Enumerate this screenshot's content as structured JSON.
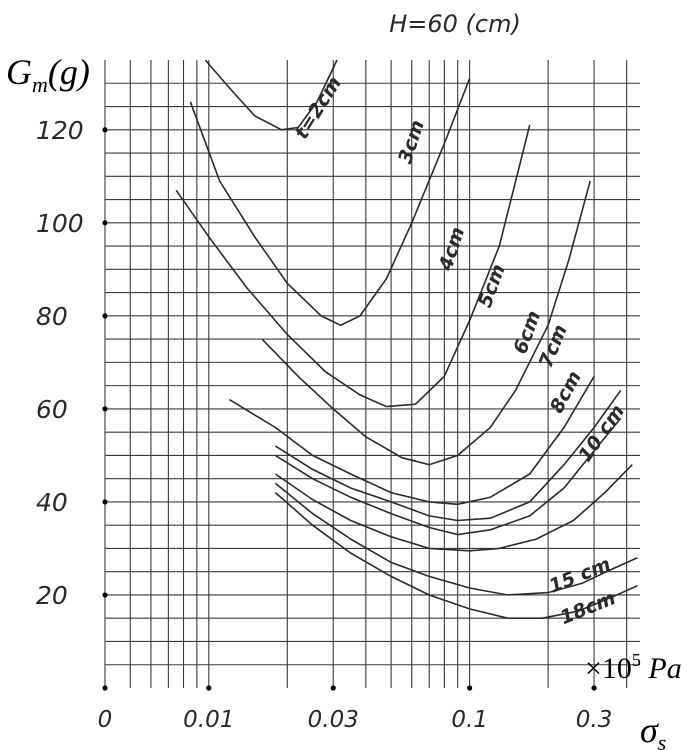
{
  "chart_data": {
    "type": "line",
    "title": "H=60 (cm)",
    "ylabel": "G_m(g)",
    "y_axis_label": {
      "main": "G",
      "sub": "m",
      "rest": "(g)"
    },
    "xlabel_symbol": {
      "main": "σ",
      "sub": "s"
    },
    "x_unit": {
      "prefix": "×10",
      "exp": "5",
      "unit": " Pa"
    },
    "x_scale": "log",
    "xlim": [
      0.004,
      0.45
    ],
    "ylim": [
      0,
      135
    ],
    "grid": true,
    "x_ticks": [
      {
        "label": "0",
        "value": 0.004
      },
      {
        "label": "0.01",
        "value": 0.01
      },
      {
        "label": "0.03",
        "value": 0.03
      },
      {
        "label": "0.1",
        "value": 0.1
      },
      {
        "label": "0.3",
        "value": 0.3
      }
    ],
    "y_ticks": [
      {
        "label": "20",
        "value": 20
      },
      {
        "label": "40",
        "value": 40
      },
      {
        "label": "60",
        "value": 60
      },
      {
        "label": "80",
        "value": 80
      },
      {
        "label": "100",
        "value": 100
      },
      {
        "label": "120",
        "value": 120
      }
    ],
    "series": [
      {
        "name": "t=2cm",
        "points": [
          [
            0.0097,
            135
          ],
          [
            0.012,
            129
          ],
          [
            0.015,
            123
          ],
          [
            0.019,
            120
          ],
          [
            0.022,
            120.5
          ],
          [
            0.026,
            126
          ],
          [
            0.031,
            135
          ]
        ]
      },
      {
        "name": "3cm",
        "points": [
          [
            0.0085,
            126
          ],
          [
            0.011,
            109
          ],
          [
            0.015,
            97
          ],
          [
            0.02,
            87
          ],
          [
            0.027,
            80
          ],
          [
            0.032,
            78
          ],
          [
            0.038,
            80
          ],
          [
            0.048,
            88
          ],
          [
            0.06,
            100
          ],
          [
            0.08,
            117
          ],
          [
            0.1,
            131
          ]
        ]
      },
      {
        "name": "4cm",
        "points": [
          [
            0.0075,
            107
          ],
          [
            0.01,
            97
          ],
          [
            0.014,
            86
          ],
          [
            0.02,
            76
          ],
          [
            0.028,
            68
          ],
          [
            0.038,
            63
          ],
          [
            0.048,
            60.5
          ],
          [
            0.062,
            61
          ],
          [
            0.08,
            67
          ],
          [
            0.1,
            79
          ],
          [
            0.13,
            95
          ],
          [
            0.17,
            121
          ]
        ]
      },
      {
        "name": "5cm",
        "points": [
          [
            0.016,
            75
          ],
          [
            0.022,
            67
          ],
          [
            0.03,
            60
          ],
          [
            0.04,
            54
          ],
          [
            0.055,
            49.5
          ],
          [
            0.07,
            48
          ],
          [
            0.09,
            50
          ],
          [
            0.12,
            56
          ],
          [
            0.15,
            64
          ],
          [
            0.2,
            78
          ],
          [
            0.24,
            92
          ],
          [
            0.29,
            109
          ]
        ]
      },
      {
        "name": "6cm",
        "points": [
          [
            0.012,
            62
          ],
          [
            0.018,
            56
          ],
          [
            0.025,
            50
          ],
          [
            0.035,
            46
          ],
          [
            0.05,
            42
          ],
          [
            0.07,
            40
          ],
          [
            0.09,
            39.5
          ],
          [
            0.12,
            41
          ],
          [
            0.17,
            46
          ],
          [
            0.23,
            56
          ],
          [
            0.3,
            67
          ]
        ]
      },
      {
        "name": "7cm",
        "points": [
          [
            0.018,
            52
          ],
          [
            0.025,
            47
          ],
          [
            0.035,
            43
          ],
          [
            0.05,
            40
          ],
          [
            0.07,
            37
          ],
          [
            0.09,
            36
          ],
          [
            0.12,
            36.5
          ],
          [
            0.17,
            40
          ],
          [
            0.23,
            48
          ],
          [
            0.3,
            56
          ],
          [
            0.38,
            64
          ]
        ]
      },
      {
        "name": "8cm",
        "points": [
          [
            0.018,
            50
          ],
          [
            0.025,
            45
          ],
          [
            0.035,
            41
          ],
          [
            0.05,
            37.5
          ],
          [
            0.07,
            34.5
          ],
          [
            0.09,
            33
          ],
          [
            0.12,
            34
          ],
          [
            0.17,
            37
          ],
          [
            0.23,
            43
          ],
          [
            0.3,
            51
          ],
          [
            0.38,
            58
          ]
        ]
      },
      {
        "name": "10cm",
        "points": [
          [
            0.018,
            46
          ],
          [
            0.025,
            40.5
          ],
          [
            0.035,
            36
          ],
          [
            0.05,
            32.5
          ],
          [
            0.07,
            30
          ],
          [
            0.1,
            29.5
          ],
          [
            0.13,
            30
          ],
          [
            0.18,
            32
          ],
          [
            0.25,
            36
          ],
          [
            0.33,
            42
          ],
          [
            0.42,
            48
          ]
        ]
      },
      {
        "name": "15cm",
        "points": [
          [
            0.018,
            44
          ],
          [
            0.025,
            37.5
          ],
          [
            0.035,
            32
          ],
          [
            0.05,
            27
          ],
          [
            0.07,
            24
          ],
          [
            0.1,
            21.5
          ],
          [
            0.14,
            20
          ],
          [
            0.2,
            20.5
          ],
          [
            0.27,
            22.5
          ],
          [
            0.35,
            25.5
          ],
          [
            0.44,
            28
          ]
        ]
      },
      {
        "name": "18cm",
        "points": [
          [
            0.018,
            42
          ],
          [
            0.025,
            35
          ],
          [
            0.035,
            29
          ],
          [
            0.05,
            24
          ],
          [
            0.07,
            20
          ],
          [
            0.1,
            17
          ],
          [
            0.14,
            15
          ],
          [
            0.19,
            15
          ],
          [
            0.26,
            16.5
          ],
          [
            0.35,
            19.5
          ],
          [
            0.44,
            22
          ]
        ]
      }
    ],
    "curve_labels": [
      {
        "series": "t=2cm",
        "text": "t=2cm",
        "at": [
          0.0275,
          124
        ],
        "angle": -58
      },
      {
        "series": "3cm",
        "text": "3cm",
        "at": [
          0.063,
          117
        ],
        "angle": -72
      },
      {
        "series": "4cm",
        "text": "4cm",
        "at": [
          0.09,
          94
        ],
        "angle": -72
      },
      {
        "series": "5cm",
        "text": "5cm",
        "at": [
          0.128,
          86
        ],
        "angle": -70
      },
      {
        "series": "6cm",
        "text": "6cm",
        "at": [
          0.175,
          76
        ],
        "angle": -70
      },
      {
        "series": "7cm",
        "text": "7cm",
        "at": [
          0.22,
          73
        ],
        "angle": -68
      },
      {
        "series": "8cm",
        "text": "8cm",
        "at": [
          0.245,
          63
        ],
        "angle": -62
      },
      {
        "series": "10cm",
        "text": "10 cm",
        "at": [
          0.335,
          54
        ],
        "angle": -55
      },
      {
        "series": "15cm",
        "text": "15 cm",
        "at": [
          0.27,
          23
        ],
        "angle": -22
      },
      {
        "series": "18cm",
        "text": "18cm",
        "at": [
          0.29,
          16
        ],
        "angle": -22
      }
    ]
  }
}
